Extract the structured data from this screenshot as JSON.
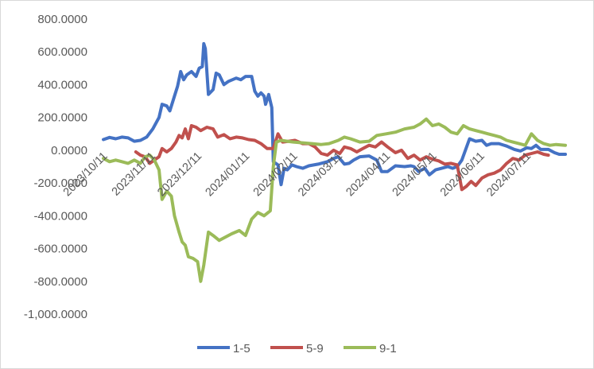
{
  "chart_data": {
    "type": "line",
    "y_ticks": [
      "800.0000",
      "600.0000",
      "400.0000",
      "200.0000",
      "0.0000",
      "-200.0000",
      "-400.0000",
      "-600.0000",
      "-800.0000",
      "-1,000.0000"
    ],
    "ylim": [
      -1000,
      800
    ],
    "x_ticks": [
      "2023/10/11",
      "2023/11/11",
      "2023/12/11",
      "2024/01/11",
      "2024/02/11",
      "2024/03/11",
      "2024/04/11",
      "2024/05/11",
      "2024/06/11",
      "2024/07/11"
    ],
    "grid": false,
    "legend_position": "bottom",
    "series": [
      {
        "name": "1-5",
        "color": "#4472C4",
        "points": [
          [
            "2023-10-08",
            65
          ],
          [
            "2023-10-12",
            78
          ],
          [
            "2023-10-16",
            70
          ],
          [
            "2023-10-20",
            80
          ],
          [
            "2023-10-24",
            75
          ],
          [
            "2023-10-28",
            55
          ],
          [
            "2023-11-01",
            60
          ],
          [
            "2023-11-05",
            80
          ],
          [
            "2023-11-09",
            130
          ],
          [
            "2023-11-13",
            200
          ],
          [
            "2023-11-15",
            280
          ],
          [
            "2023-11-18",
            270
          ],
          [
            "2023-11-20",
            240
          ],
          [
            "2023-11-23",
            330
          ],
          [
            "2023-11-25",
            390
          ],
          [
            "2023-11-27",
            480
          ],
          [
            "2023-11-29",
            430
          ],
          [
            "2023-12-01",
            460
          ],
          [
            "2023-12-04",
            480
          ],
          [
            "2023-12-07",
            450
          ],
          [
            "2023-12-09",
            500
          ],
          [
            "2023-12-11",
            510
          ],
          [
            "2023-12-12",
            650
          ],
          [
            "2023-12-13",
            620
          ],
          [
            "2023-12-15",
            340
          ],
          [
            "2023-12-18",
            370
          ],
          [
            "2023-12-20",
            470
          ],
          [
            "2023-12-22",
            460
          ],
          [
            "2023-12-25",
            400
          ],
          [
            "2023-12-28",
            420
          ],
          [
            "2024-01-02",
            440
          ],
          [
            "2024-01-05",
            430
          ],
          [
            "2024-01-08",
            450
          ],
          [
            "2024-01-12",
            450
          ],
          [
            "2024-01-14",
            360
          ],
          [
            "2024-01-16",
            330
          ],
          [
            "2024-01-18",
            350
          ],
          [
            "2024-01-20",
            330
          ],
          [
            "2024-01-21",
            280
          ],
          [
            "2024-01-23",
            340
          ],
          [
            "2024-01-25",
            260
          ],
          [
            "2024-01-26",
            -70
          ],
          [
            "2024-01-29",
            -90
          ],
          [
            "2024-01-31",
            -210
          ],
          [
            "2024-02-02",
            -110
          ],
          [
            "2024-02-04",
            -120
          ],
          [
            "2024-02-07",
            -90
          ],
          [
            "2024-02-10",
            -100
          ],
          [
            "2024-02-14",
            -110
          ],
          [
            "2024-02-18",
            -95
          ],
          [
            "2024-02-24",
            -85
          ],
          [
            "2024-03-01",
            -70
          ],
          [
            "2024-03-05",
            -50
          ],
          [
            "2024-03-08",
            -40
          ],
          [
            "2024-03-12",
            -85
          ],
          [
            "2024-03-15",
            -80
          ],
          [
            "2024-03-18",
            -60
          ],
          [
            "2024-03-22",
            -40
          ],
          [
            "2024-03-28",
            -35
          ],
          [
            "2024-04-02",
            -60
          ],
          [
            "2024-04-05",
            -130
          ],
          [
            "2024-04-09",
            -130
          ],
          [
            "2024-04-14",
            -95
          ],
          [
            "2024-04-20",
            -100
          ],
          [
            "2024-04-24",
            -95
          ],
          [
            "2024-04-26",
            -100
          ],
          [
            "2024-04-29",
            -130
          ],
          [
            "2024-05-03",
            -110
          ],
          [
            "2024-05-06",
            -150
          ],
          [
            "2024-05-10",
            -120
          ],
          [
            "2024-05-14",
            -110
          ],
          [
            "2024-05-18",
            -100
          ],
          [
            "2024-05-21",
            -110
          ],
          [
            "2024-05-24",
            -100
          ],
          [
            "2024-05-27",
            -60
          ],
          [
            "2024-06-01",
            70
          ],
          [
            "2024-06-05",
            55
          ],
          [
            "2024-06-09",
            60
          ],
          [
            "2024-06-12",
            30
          ],
          [
            "2024-06-15",
            40
          ],
          [
            "2024-06-20",
            40
          ],
          [
            "2024-06-25",
            25
          ],
          [
            "2024-06-30",
            5
          ],
          [
            "2024-07-04",
            -5
          ],
          [
            "2024-07-08",
            15
          ],
          [
            "2024-07-11",
            10
          ],
          [
            "2024-07-14",
            30
          ],
          [
            "2024-07-17",
            5
          ],
          [
            "2024-07-22",
            5
          ],
          [
            "2024-07-26",
            -15
          ],
          [
            "2024-07-29",
            -25
          ],
          [
            "2024-08-02",
            -25
          ]
        ]
      },
      {
        "name": "5-9",
        "color": "#C0504D",
        "points": [
          [
            "2023-10-29",
            -10
          ],
          [
            "2023-11-01",
            -30
          ],
          [
            "2023-11-04",
            -40
          ],
          [
            "2023-11-07",
            -80
          ],
          [
            "2023-11-10",
            -60
          ],
          [
            "2023-11-13",
            -40
          ],
          [
            "2023-11-15",
            10
          ],
          [
            "2023-11-18",
            -10
          ],
          [
            "2023-11-21",
            10
          ],
          [
            "2023-11-24",
            50
          ],
          [
            "2023-11-26",
            90
          ],
          [
            "2023-11-28",
            75
          ],
          [
            "2023-11-30",
            130
          ],
          [
            "2023-12-02",
            70
          ],
          [
            "2023-12-04",
            150
          ],
          [
            "2023-12-07",
            140
          ],
          [
            "2023-12-10",
            120
          ],
          [
            "2023-12-14",
            140
          ],
          [
            "2023-12-18",
            130
          ],
          [
            "2023-12-21",
            80
          ],
          [
            "2023-12-25",
            95
          ],
          [
            "2023-12-29",
            70
          ],
          [
            "2024-01-02",
            80
          ],
          [
            "2024-01-06",
            75
          ],
          [
            "2024-01-10",
            65
          ],
          [
            "2024-01-14",
            60
          ],
          [
            "2024-01-18",
            40
          ],
          [
            "2024-01-22",
            10
          ],
          [
            "2024-01-26",
            10
          ],
          [
            "2024-01-29",
            100
          ],
          [
            "2024-02-01",
            50
          ],
          [
            "2024-02-05",
            55
          ],
          [
            "2024-02-09",
            60
          ],
          [
            "2024-02-14",
            40
          ],
          [
            "2024-02-18",
            40
          ],
          [
            "2024-02-22",
            20
          ],
          [
            "2024-02-26",
            -20
          ],
          [
            "2024-03-01",
            -30
          ],
          [
            "2024-03-05",
            0
          ],
          [
            "2024-03-09",
            -20
          ],
          [
            "2024-03-12",
            20
          ],
          [
            "2024-03-16",
            10
          ],
          [
            "2024-03-20",
            -10
          ],
          [
            "2024-03-24",
            10
          ],
          [
            "2024-03-28",
            30
          ],
          [
            "2024-04-01",
            20
          ],
          [
            "2024-04-05",
            50
          ],
          [
            "2024-04-09",
            20
          ],
          [
            "2024-04-14",
            -15
          ],
          [
            "2024-04-18",
            0
          ],
          [
            "2024-04-22",
            -50
          ],
          [
            "2024-04-26",
            -30
          ],
          [
            "2024-04-30",
            -60
          ],
          [
            "2024-05-04",
            -40
          ],
          [
            "2024-05-08",
            -55
          ],
          [
            "2024-05-12",
            -65
          ],
          [
            "2024-05-16",
            -85
          ],
          [
            "2024-05-20",
            -80
          ],
          [
            "2024-05-24",
            -90
          ],
          [
            "2024-05-27",
            -240
          ],
          [
            "2024-05-30",
            -220
          ],
          [
            "2024-06-02",
            -190
          ],
          [
            "2024-06-05",
            -215
          ],
          [
            "2024-06-09",
            -170
          ],
          [
            "2024-06-13",
            -150
          ],
          [
            "2024-06-17",
            -140
          ],
          [
            "2024-06-21",
            -120
          ],
          [
            "2024-06-25",
            -80
          ],
          [
            "2024-06-29",
            -50
          ],
          [
            "2024-07-03",
            -60
          ],
          [
            "2024-07-07",
            -30
          ],
          [
            "2024-07-11",
            -20
          ],
          [
            "2024-07-15",
            -10
          ],
          [
            "2024-07-19",
            -25
          ],
          [
            "2024-07-22",
            -30
          ]
        ]
      },
      {
        "name": "9-1",
        "color": "#9BBB59",
        "points": [
          [
            "2023-10-08",
            -50
          ],
          [
            "2023-10-12",
            -70
          ],
          [
            "2023-10-16",
            -60
          ],
          [
            "2023-10-20",
            -70
          ],
          [
            "2023-10-24",
            -80
          ],
          [
            "2023-10-28",
            -60
          ],
          [
            "2023-11-01",
            -80
          ],
          [
            "2023-11-04",
            -40
          ],
          [
            "2023-11-07",
            -30
          ],
          [
            "2023-11-10",
            -60
          ],
          [
            "2023-11-13",
            -120
          ],
          [
            "2023-11-15",
            -300
          ],
          [
            "2023-11-18",
            -250
          ],
          [
            "2023-11-21",
            -280
          ],
          [
            "2023-11-23",
            -400
          ],
          [
            "2023-11-26",
            -500
          ],
          [
            "2023-11-28",
            -560
          ],
          [
            "2023-11-30",
            -580
          ],
          [
            "2023-12-02",
            -650
          ],
          [
            "2023-12-05",
            -660
          ],
          [
            "2023-12-08",
            -680
          ],
          [
            "2023-12-10",
            -800
          ],
          [
            "2023-12-12",
            -700
          ],
          [
            "2023-12-15",
            -500
          ],
          [
            "2023-12-18",
            -520
          ],
          [
            "2023-12-22",
            -550
          ],
          [
            "2023-12-26",
            -530
          ],
          [
            "2023-12-30",
            -510
          ],
          [
            "2024-01-04",
            -490
          ],
          [
            "2024-01-08",
            -520
          ],
          [
            "2024-01-12",
            -420
          ],
          [
            "2024-01-16",
            -380
          ],
          [
            "2024-01-20",
            -400
          ],
          [
            "2024-01-24",
            -370
          ],
          [
            "2024-01-26",
            -100
          ],
          [
            "2024-01-28",
            50
          ],
          [
            "2024-01-31",
            60
          ],
          [
            "2024-02-04",
            55
          ],
          [
            "2024-02-08",
            50
          ],
          [
            "2024-02-14",
            45
          ],
          [
            "2024-02-20",
            40
          ],
          [
            "2024-02-26",
            35
          ],
          [
            "2024-03-02",
            40
          ],
          [
            "2024-03-08",
            60
          ],
          [
            "2024-03-12",
            80
          ],
          [
            "2024-03-16",
            70
          ],
          [
            "2024-03-22",
            50
          ],
          [
            "2024-03-28",
            55
          ],
          [
            "2024-04-02",
            90
          ],
          [
            "2024-04-08",
            100
          ],
          [
            "2024-04-14",
            110
          ],
          [
            "2024-04-20",
            130
          ],
          [
            "2024-04-26",
            140
          ],
          [
            "2024-04-30",
            160
          ],
          [
            "2024-05-04",
            190
          ],
          [
            "2024-05-08",
            150
          ],
          [
            "2024-05-12",
            160
          ],
          [
            "2024-05-16",
            140
          ],
          [
            "2024-05-20",
            110
          ],
          [
            "2024-05-24",
            100
          ],
          [
            "2024-05-28",
            150
          ],
          [
            "2024-06-01",
            130
          ],
          [
            "2024-06-05",
            120
          ],
          [
            "2024-06-09",
            110
          ],
          [
            "2024-06-13",
            100
          ],
          [
            "2024-06-17",
            90
          ],
          [
            "2024-06-21",
            80
          ],
          [
            "2024-06-25",
            60
          ],
          [
            "2024-06-29",
            50
          ],
          [
            "2024-07-03",
            40
          ],
          [
            "2024-07-07",
            30
          ],
          [
            "2024-07-11",
            100
          ],
          [
            "2024-07-15",
            60
          ],
          [
            "2024-07-19",
            40
          ],
          [
            "2024-07-23",
            30
          ],
          [
            "2024-07-27",
            35
          ],
          [
            "2024-08-02",
            30
          ]
        ]
      }
    ]
  }
}
